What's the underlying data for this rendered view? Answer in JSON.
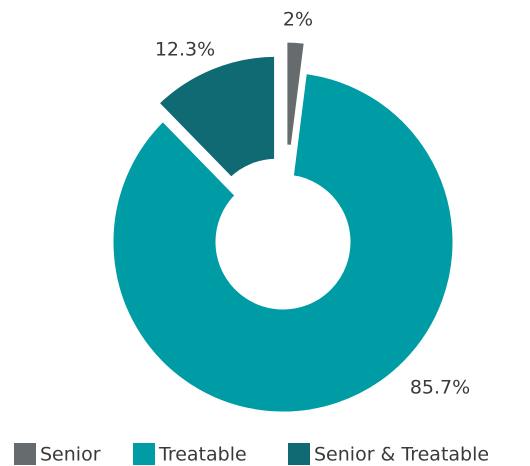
{
  "chart_data": {
    "type": "pie",
    "categories": [
      "Senior",
      "Treatable",
      "Senior & Treatable"
    ],
    "values": [
      2,
      85.7,
      12.3
    ],
    "value_labels": [
      "2%",
      "85.7%",
      "12.3%"
    ],
    "colors": [
      "#666b6e",
      "#009ca6",
      "#0f6a73"
    ],
    "legend": "bottom"
  }
}
